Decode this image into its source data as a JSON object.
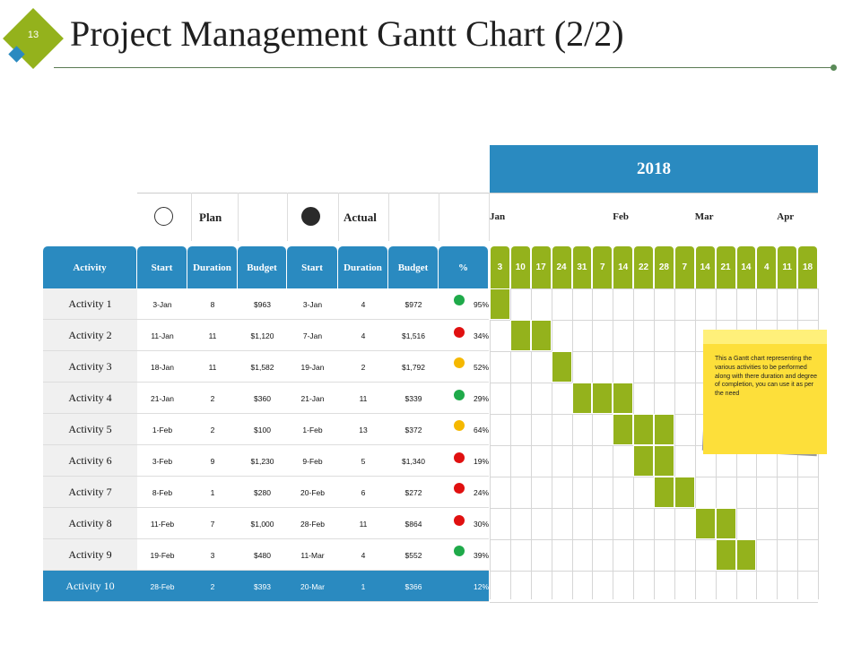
{
  "slide": {
    "number": "13",
    "title": "Project Management Gantt Chart (2/2)"
  },
  "colors": {
    "header_blue": "#2a8ac0",
    "bar_green": "#94b21c",
    "status_green": "#1faa4a",
    "status_red": "#e01010",
    "status_yellow": "#f5b800",
    "note_yellow": "#fddf3a"
  },
  "gantt": {
    "year": "2018",
    "legend": {
      "plan": "Plan",
      "actual": "Actual"
    },
    "months": [
      "Jan",
      "Feb",
      "Mar",
      "Apr"
    ],
    "headers": [
      "Activity",
      "Start",
      "Duration",
      "Budget",
      "Start",
      "Duration",
      "Budget",
      "%"
    ],
    "weeks": [
      "3",
      "10",
      "17",
      "24",
      "31",
      "7",
      "14",
      "22",
      "28",
      "7",
      "14",
      "21",
      "14",
      "4",
      "11",
      "18"
    ],
    "activities": [
      {
        "name": "Activity 1",
        "plan_start": "3-Jan",
        "plan_duration": "8",
        "plan_budget": "$963",
        "actual_start": "3-Jan",
        "actual_duration": "4",
        "actual_budget": "$972",
        "percent": "95%",
        "status": "green",
        "bar": [
          0
        ]
      },
      {
        "name": "Activity 2",
        "plan_start": "11-Jan",
        "plan_duration": "11",
        "plan_budget": "$1,120",
        "actual_start": "7-Jan",
        "actual_duration": "4",
        "actual_budget": "$1,516",
        "percent": "34%",
        "status": "red",
        "bar": [
          1,
          2
        ]
      },
      {
        "name": "Activity 3",
        "plan_start": "18-Jan",
        "plan_duration": "11",
        "plan_budget": "$1,582",
        "actual_start": "19-Jan",
        "actual_duration": "2",
        "actual_budget": "$1,792",
        "percent": "52%",
        "status": "yellow",
        "bar": [
          3
        ]
      },
      {
        "name": "Activity 4",
        "plan_start": "21-Jan",
        "plan_duration": "2",
        "plan_budget": "$360",
        "actual_start": "21-Jan",
        "actual_duration": "11",
        "actual_budget": "$339",
        "percent": "29%",
        "status": "green",
        "bar": [
          4,
          5,
          6
        ]
      },
      {
        "name": "Activity 5",
        "plan_start": "1-Feb",
        "plan_duration": "2",
        "plan_budget": "$100",
        "actual_start": "1-Feb",
        "actual_duration": "13",
        "actual_budget": "$372",
        "percent": "64%",
        "status": "yellow",
        "bar": [
          6,
          7,
          8
        ]
      },
      {
        "name": "Activity 6",
        "plan_start": "3-Feb",
        "plan_duration": "9",
        "plan_budget": "$1,230",
        "actual_start": "9-Feb",
        "actual_duration": "5",
        "actual_budget": "$1,340",
        "percent": "19%",
        "status": "red",
        "bar": [
          7,
          8
        ]
      },
      {
        "name": "Activity 7",
        "plan_start": "8-Feb",
        "plan_duration": "1",
        "plan_budget": "$280",
        "actual_start": "20-Feb",
        "actual_duration": "6",
        "actual_budget": "$272",
        "percent": "24%",
        "status": "red",
        "bar": [
          8,
          9
        ]
      },
      {
        "name": "Activity 8",
        "plan_start": "11-Feb",
        "plan_duration": "7",
        "plan_budget": "$1,000",
        "actual_start": "28-Feb",
        "actual_duration": "11",
        "actual_budget": "$864",
        "percent": "30%",
        "status": "red",
        "bar": [
          10,
          11
        ]
      },
      {
        "name": "Activity 9",
        "plan_start": "19-Feb",
        "plan_duration": "3",
        "plan_budget": "$480",
        "actual_start": "11-Mar",
        "actual_duration": "4",
        "actual_budget": "$552",
        "percent": "39%",
        "status": "green",
        "bar": [
          11,
          12
        ]
      },
      {
        "name": "Activity 10",
        "plan_start": "28-Feb",
        "plan_duration": "2",
        "plan_budget": "$393",
        "actual_start": "20-Mar",
        "actual_duration": "1",
        "actual_budget": "$366",
        "percent": "12%",
        "status": "red",
        "bar": []
      }
    ]
  },
  "note": {
    "text": "This a Gantt chart representing the various activities to be performed along with there duration and degree of completion, you can use it as per the need"
  }
}
